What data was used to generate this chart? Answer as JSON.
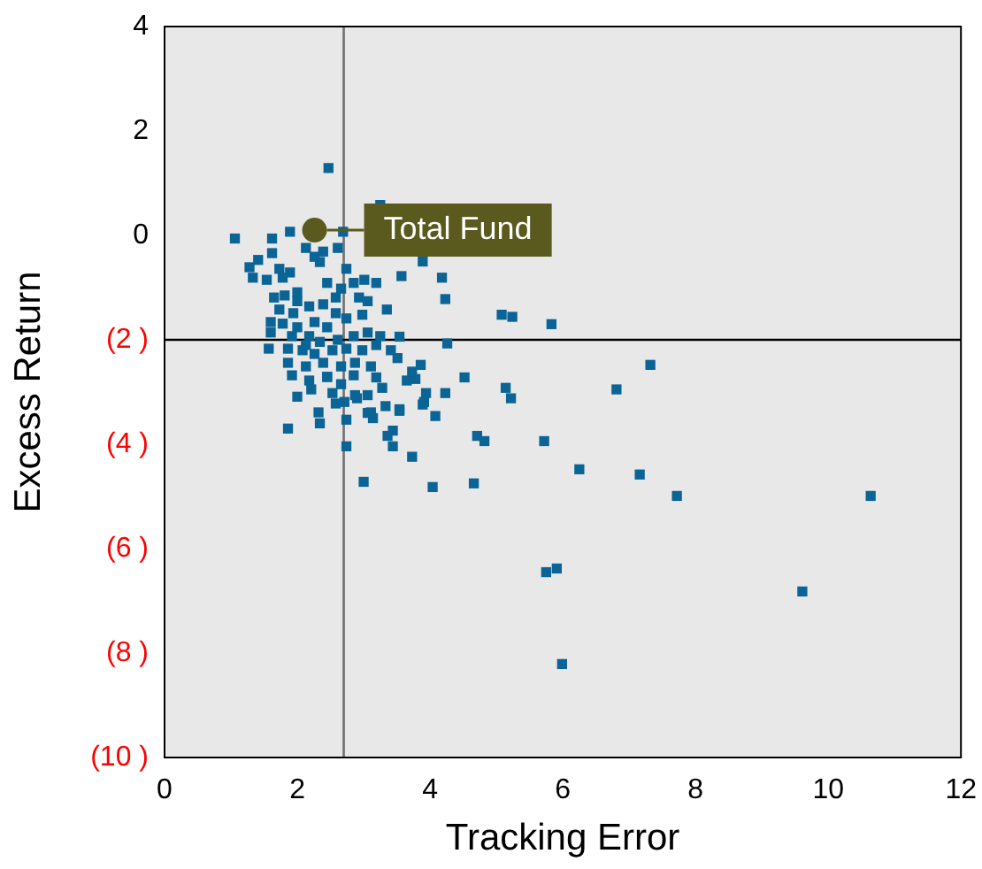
{
  "chart_data": {
    "type": "scatter",
    "xlabel": "Tracking Error",
    "ylabel": "Excess Return",
    "xlim": [
      0,
      12
    ],
    "xticks": [
      0,
      2,
      4,
      6,
      8,
      10,
      12
    ],
    "ylim": [
      -10,
      4
    ],
    "yticks": [
      {
        "value": -10,
        "label": "(10 )"
      },
      {
        "value": -8,
        "label": "(8 )"
      },
      {
        "value": -6,
        "label": "(6 )"
      },
      {
        "value": -4,
        "label": "(4 )"
      },
      {
        "value": -2,
        "label": "(2 )"
      },
      0,
      2,
      4
    ],
    "grid": false,
    "legend": false,
    "ref_lines": [
      {
        "axis": "x",
        "value": 2.7,
        "color": "#707070"
      },
      {
        "axis": "y",
        "value": -2.0,
        "color": "#000000"
      }
    ],
    "series": [
      {
        "color": "#0a6496",
        "marker": "square",
        "x": [
          1.06,
          1.62,
          1.89,
          2.47,
          2.69,
          3.25,
          3.89,
          3.57,
          4.18,
          4.23,
          3.35,
          4.26,
          5.08,
          5.24,
          5.83,
          7.32,
          6.81,
          4.52,
          5.14,
          5.22,
          4.23,
          4.71,
          4.82,
          5.72,
          6.25,
          7.16,
          7.72,
          10.64,
          4.04,
          4.66,
          3.0,
          5.75,
          5.91,
          9.61,
          5.99,
          3.73,
          4.08,
          3.94,
          3.86,
          3.44,
          3.36,
          3.44,
          3.14,
          3.06,
          3.54,
          3.33,
          3.89,
          3.28,
          3.51,
          3.54,
          3.78,
          3.65,
          3.19,
          3.41,
          2.9,
          1.28,
          1.41,
          1.62,
          1.33,
          1.54,
          1.78,
          1.89,
          2.13,
          2.26,
          2.34,
          2.39,
          2.61,
          2.74,
          2.85,
          3.01,
          2.45,
          2.66,
          2.93,
          3.06,
          1.65,
          1.81,
          2.0,
          1.73,
          1.94,
          2.18,
          2.39,
          2.58,
          2.74,
          2.98,
          1.6,
          1.78,
          2.0,
          2.26,
          2.45,
          1.6,
          1.92,
          2.18,
          2.34,
          2.61,
          2.85,
          3.06,
          3.25,
          1.57,
          1.86,
          2.08,
          2.26,
          2.53,
          2.74,
          2.98,
          3.19,
          1.86,
          2.13,
          2.39,
          2.66,
          2.87,
          3.11,
          1.92,
          2.18,
          2.45,
          2.66,
          2.85,
          2.21,
          2.53,
          2.71,
          2.87,
          3.06,
          2.0,
          2.32,
          2.34,
          2.58,
          2.74,
          3.11,
          1.86,
          2.74,
          3.54,
          3.91,
          3.73,
          3.19,
          1.73,
          2.0,
          2.58,
          2.13,
          2.45
        ],
        "values": [
          -0.06,
          -0.06,
          0.07,
          1.29,
          0.07,
          0.58,
          -0.5,
          -0.78,
          -0.81,
          -1.22,
          -1.42,
          -2.07,
          -1.52,
          -1.56,
          -1.7,
          -2.48,
          -2.95,
          -2.72,
          -2.92,
          -3.12,
          -3.02,
          -3.84,
          -3.94,
          -3.94,
          -4.48,
          -4.58,
          -4.99,
          -4.99,
          -4.82,
          -4.75,
          -4.72,
          -6.45,
          -6.38,
          -6.82,
          -8.21,
          -4.24,
          -3.46,
          -3.02,
          -2.48,
          -3.74,
          -3.84,
          -4.04,
          -3.5,
          -3.4,
          -3.33,
          -3.27,
          -3.24,
          -2.92,
          -2.35,
          -1.94,
          -2.75,
          -2.78,
          -2.72,
          -2.2,
          -3.12,
          -0.61,
          -0.47,
          -0.34,
          -0.81,
          -0.85,
          -0.81,
          -0.71,
          -0.24,
          -0.41,
          -0.51,
          -0.31,
          -0.24,
          -0.64,
          -0.91,
          -0.85,
          -0.91,
          -1.02,
          -1.19,
          -1.26,
          -1.19,
          -1.15,
          -1.09,
          -1.42,
          -1.49,
          -1.36,
          -1.32,
          -1.49,
          -1.59,
          -1.52,
          -1.66,
          -1.69,
          -1.76,
          -1.66,
          -1.76,
          -1.86,
          -1.93,
          -1.93,
          -2.04,
          -2.0,
          -1.93,
          -1.86,
          -1.93,
          -2.17,
          -2.17,
          -2.2,
          -2.27,
          -2.2,
          -2.17,
          -2.2,
          -2.1,
          -2.44,
          -2.51,
          -2.44,
          -2.51,
          -2.44,
          -2.51,
          -2.68,
          -2.78,
          -2.71,
          -2.85,
          -2.68,
          -2.95,
          -3.02,
          -3.19,
          -3.06,
          -3.06,
          -3.09,
          -3.39,
          -3.6,
          -3.22,
          -3.53,
          -3.39,
          -3.7,
          -4.04,
          -3.36,
          -3.19,
          -2.61,
          -0.91,
          -0.64,
          -1.26,
          -1.19,
          -2.1,
          -2.71
        ]
      },
      {
        "color": "#5a5a1e",
        "marker": "circle",
        "x": [
          2.26
        ],
        "values": [
          0.1
        ]
      }
    ],
    "annotations": [
      {
        "text": "Total Fund",
        "x": 2.26,
        "y": 0.1
      }
    ]
  }
}
